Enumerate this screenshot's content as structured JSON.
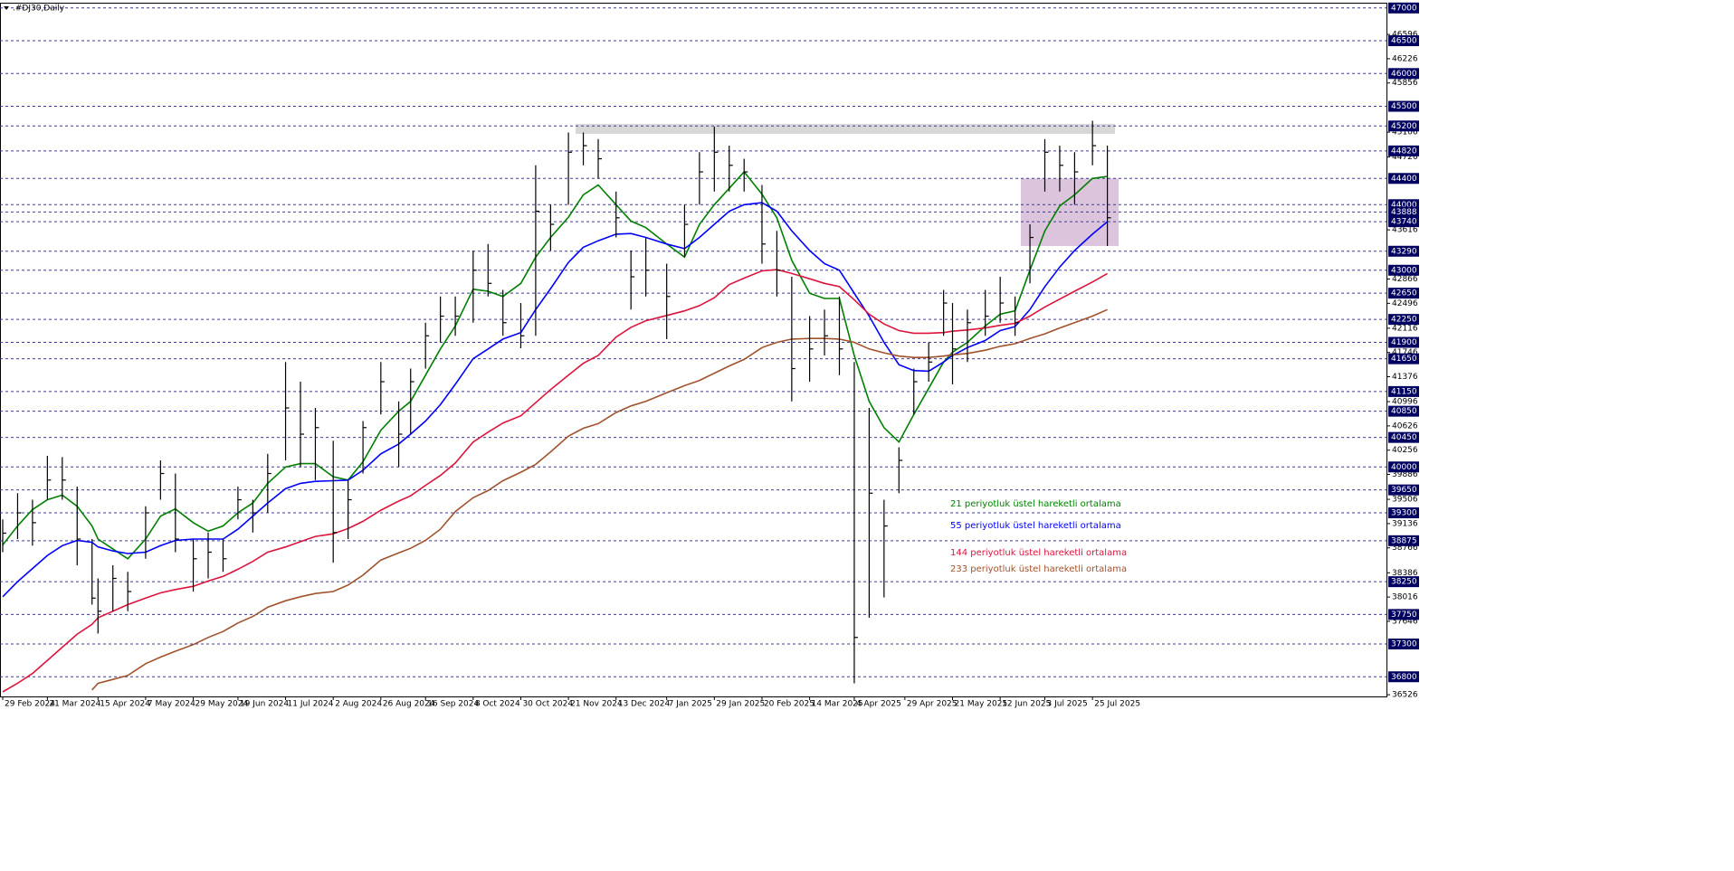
{
  "chart_data": {
    "type": "candlestick",
    "title": ".#DJ30,Daily",
    "ylim": [
      36500,
      47080
    ],
    "yticks": [
      46596,
      46226,
      45856,
      45106,
      44726,
      43616,
      42866,
      42496,
      42116,
      41746,
      41376,
      40996,
      40626,
      40256,
      39886,
      39506,
      39136,
      38766,
      38386,
      38016,
      37646,
      36526
    ],
    "levels": [
      47000,
      46500,
      46000,
      45500,
      45200,
      44820,
      44400,
      44000,
      43888,
      43740,
      43290,
      43000,
      42650,
      42250,
      41900,
      41650,
      41150,
      40850,
      40450,
      40000,
      39650,
      39300,
      38875,
      38250,
      37750,
      37300,
      36800
    ],
    "xticks": [
      "29 Feb 2024",
      "21 Mar 2024",
      "15 Apr 2024",
      "7 May 2024",
      "29 May 2024",
      "19 Jun 2024",
      "11 Jul 2024",
      "2 Aug 2024",
      "26 Aug 2024",
      "16 Sep 2024",
      "8 Oct 2024",
      "30 Oct 2024",
      "21 Nov 2024",
      "13 Dec 2024",
      "7 Jan 2025",
      "29 Jan 2025",
      "20 Feb 2025",
      "14 Mar 2025",
      "4 Apr 2025",
      "29 Apr 2025",
      "21 May 2025",
      "12 Jun 2025",
      "3 Jul 2025",
      "25 Jul 2025"
    ],
    "x": [
      "29 Feb 2024",
      "7 Mar 2024",
      "14 Mar 2024",
      "21 Mar 2024",
      "28 Mar 2024",
      "4 Apr 2024",
      "11 Apr 2024",
      "15 Apr 2024",
      "22 Apr 2024",
      "29 Apr 2024",
      "7 May 2024",
      "14 May 2024",
      "21 May 2024",
      "29 May 2024",
      "5 Jun 2024",
      "12 Jun 2024",
      "19 Jun 2024",
      "26 Jun 2024",
      "3 Jul 2024",
      "11 Jul 2024",
      "18 Jul 2024",
      "25 Jul 2024",
      "2 Aug 2024",
      "9 Aug 2024",
      "16 Aug 2024",
      "26 Aug 2024",
      "3 Sep 2024",
      "9 Sep 2024",
      "16 Sep 2024",
      "23 Sep 2024",
      "30 Sep 2024",
      "8 Oct 2024",
      "15 Oct 2024",
      "22 Oct 2024",
      "30 Oct 2024",
      "6 Nov 2024",
      "13 Nov 2024",
      "21 Nov 2024",
      "28 Nov 2024",
      "5 Dec 2024",
      "13 Dec 2024",
      "20 Dec 2024",
      "27 Dec 2024",
      "7 Jan 2025",
      "15 Jan 2025",
      "22 Jan 2025",
      "29 Jan 2025",
      "5 Feb 2025",
      "12 Feb 2025",
      "20 Feb 2025",
      "27 Feb 2025",
      "6 Mar 2025",
      "14 Mar 2025",
      "21 Mar 2025",
      "28 Mar 2025",
      "4 Apr 2025",
      "11 Apr 2025",
      "18 Apr 2025",
      "25 Apr 2025",
      "2 May 2025",
      "9 May 2025",
      "16 May 2025",
      "21 May 2025",
      "28 May 2025",
      "5 Jun 2025",
      "12 Jun 2025",
      "19 Jun 2025",
      "26 Jun 2025",
      "3 Jul 2025",
      "10 Jul 2025",
      "17 Jul 2025",
      "25 Jul 2025",
      "1 Aug 2025"
    ],
    "high": [
      39200,
      39600,
      39500,
      40170,
      40150,
      39700,
      38900,
      38300,
      38500,
      38400,
      39400,
      40100,
      39900,
      38900,
      39000,
      38900,
      39700,
      39500,
      40200,
      41600,
      41300,
      40900,
      40400,
      39800,
      40700,
      41600,
      41000,
      41500,
      42200,
      42600,
      42600,
      43300,
      43400,
      42700,
      42500,
      44600,
      44000,
      45100,
      45100,
      45000,
      44200,
      43300,
      43500,
      43100,
      44000,
      44800,
      45190,
      44900,
      44700,
      44300,
      43600,
      42900,
      42300,
      42400,
      42600,
      41600,
      40900,
      39500,
      40300,
      41500,
      41900,
      42700,
      42500,
      42400,
      42700,
      42900,
      42600,
      43700,
      45000,
      44900,
      44800,
      45280,
      44900
    ],
    "low": [
      38700,
      38900,
      38800,
      39500,
      39500,
      38500,
      37900,
      37460,
      37800,
      37800,
      38600,
      39500,
      38700,
      38100,
      38300,
      38400,
      39200,
      39000,
      39300,
      40100,
      40000,
      39800,
      38540,
      38900,
      39900,
      40800,
      40000,
      40500,
      41500,
      41900,
      42000,
      42200,
      42600,
      42000,
      41810,
      42000,
      43300,
      44000,
      44600,
      44400,
      43500,
      42400,
      42600,
      41950,
      43200,
      44000,
      44200,
      44200,
      44200,
      43100,
      42600,
      41000,
      41300,
      41700,
      41400,
      36700,
      37700,
      38010,
      39600,
      40800,
      41300,
      42000,
      41260,
      41600,
      42000,
      42200,
      42000,
      42800,
      44200,
      44200,
      44000,
      44600,
      43370
    ],
    "close": [
      38990,
      39300,
      39150,
      39800,
      39800,
      38900,
      38000,
      37800,
      38300,
      38100,
      39300,
      39900,
      38900,
      38600,
      38700,
      38600,
      39500,
      39300,
      39900,
      40900,
      40500,
      40600,
      39000,
      39500,
      40600,
      41300,
      40500,
      41300,
      42000,
      42300,
      42300,
      43000,
      42800,
      42200,
      42000,
      43900,
      43700,
      44800,
      44900,
      44700,
      43800,
      42900,
      43000,
      42600,
      43700,
      44500,
      44800,
      44600,
      44500,
      43400,
      43000,
      41500,
      41800,
      42000,
      41800,
      37400,
      39600,
      39100,
      40100,
      41300,
      41600,
      42500,
      41800,
      42200,
      42300,
      42500,
      42200,
      43500,
      44800,
      44600,
      44500,
      44900,
      43800
    ],
    "bar_color": "#000000",
    "series": [
      {
        "name": "21 periyotluk üstel hareketli ortalama",
        "color": "#008000",
        "values": [
          38810,
          39100,
          39350,
          39500,
          39570,
          39400,
          39100,
          38900,
          38750,
          38600,
          38900,
          39250,
          39360,
          39150,
          39020,
          39100,
          39300,
          39450,
          39750,
          40000,
          40050,
          40050,
          39850,
          39800,
          40080,
          40560,
          40850,
          41000,
          41400,
          41800,
          42150,
          42710,
          42680,
          42600,
          42800,
          43200,
          43500,
          43810,
          44150,
          44300,
          44000,
          43750,
          43650,
          43400,
          43200,
          43700,
          44000,
          44250,
          44500,
          44160,
          43800,
          43150,
          42650,
          42570,
          42570,
          41700,
          41000,
          40600,
          40380,
          40800,
          41200,
          41600,
          41750,
          41900,
          42150,
          42330,
          42380,
          43000,
          43600,
          43980,
          44150,
          44400,
          44430
        ]
      },
      {
        "name": "55 periyotluk üstel hareketli ortalama",
        "color": "#0000ff",
        "values": [
          38020,
          38250,
          38450,
          38650,
          38800,
          38880,
          38850,
          38780,
          38720,
          38680,
          38700,
          38800,
          38880,
          38900,
          38900,
          38900,
          39050,
          39250,
          39450,
          39670,
          39750,
          39780,
          39790,
          39800,
          39950,
          40200,
          40350,
          40500,
          40700,
          40950,
          41260,
          41650,
          41800,
          41950,
          42050,
          42400,
          42720,
          43120,
          43350,
          43450,
          43550,
          43560,
          43500,
          43400,
          43330,
          43500,
          43700,
          43900,
          44000,
          44030,
          43900,
          43600,
          43300,
          43100,
          43000,
          42650,
          42300,
          41900,
          41560,
          41470,
          41460,
          41600,
          41700,
          41820,
          41930,
          42080,
          42140,
          42400,
          42750,
          43050,
          43300,
          43550,
          43740
        ]
      },
      {
        "name": "144 periyotluk üstel hareketli ortalama",
        "color": "#dc143c",
        "values": [
          36570,
          36700,
          36850,
          37050,
          37250,
          37450,
          37600,
          37700,
          37800,
          37900,
          38000,
          38080,
          38130,
          38180,
          38260,
          38330,
          38440,
          38560,
          38700,
          38780,
          38860,
          38940,
          38980,
          39060,
          39170,
          39340,
          39480,
          39560,
          39720,
          39870,
          40060,
          40380,
          40530,
          40670,
          40780,
          40980,
          41180,
          41400,
          41580,
          41700,
          41980,
          42130,
          42230,
          42310,
          42380,
          42460,
          42580,
          42780,
          42880,
          42990,
          43010,
          42950,
          42870,
          42800,
          42750,
          42550,
          42330,
          42180,
          42080,
          42040,
          42040,
          42050,
          42070,
          42090,
          42120,
          42160,
          42190,
          42300,
          42440,
          42560,
          42680,
          42820,
          42950
        ]
      },
      {
        "name": "233 periyotluk üstel hareketli ortalama",
        "color": "#a0522d",
        "values": [
          null,
          null,
          null,
          null,
          null,
          null,
          36600,
          36700,
          36760,
          36820,
          37000,
          37100,
          37190,
          37290,
          37400,
          37490,
          37620,
          37720,
          37860,
          37960,
          38020,
          38070,
          38100,
          38200,
          38350,
          38580,
          38690,
          38760,
          38880,
          39050,
          39320,
          39530,
          39640,
          39790,
          39920,
          40040,
          40230,
          40470,
          40590,
          40660,
          40830,
          40930,
          41000,
          41130,
          41240,
          41320,
          41430,
          41540,
          41640,
          41820,
          41900,
          41950,
          41960,
          41960,
          41950,
          41900,
          41800,
          41740,
          41690,
          41670,
          41670,
          41690,
          41710,
          41730,
          41780,
          41840,
          41880,
          41960,
          42030,
          42120,
          42200,
          42300,
          42400
        ]
      }
    ],
    "zones": [
      {
        "low": 45080,
        "high": 45230,
        "color": "#d3d3d3"
      },
      {
        "low": 43370,
        "high": 44400,
        "color": "#d8bfd8"
      }
    ]
  }
}
